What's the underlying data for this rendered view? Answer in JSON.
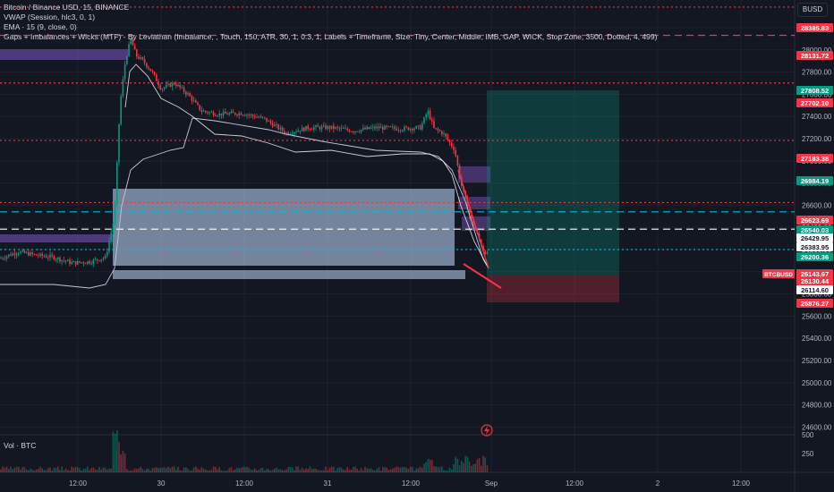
{
  "legend": {
    "symbol_line": "Bitcoin / Binance USD, 15, BINANCE",
    "vwap_line": "VWAP (Session, hlc3, 0, 1)",
    "ema_line": "EMA · 15 (9, close, 0)",
    "gaps_line": "Gaps + Imbalances + Wicks (MTF) - By Leviathan (Imbalance, , Touch, 150, ATR, 30, 1, 0.3, 1, Labels + Timeframe, Size: Tiny, Center, Middle, IMB, GAP, WICK, Stop Zone, 3500, Dotted, 4, 499)"
  },
  "currency_button": "BUSD",
  "volume_label": "Vol · BTC",
  "price_axis_ticks": [
    "28200.00",
    "28000.00",
    "27800.00",
    "27600.00",
    "27400.00",
    "27200.00",
    "27000.00",
    "26800.00",
    "26600.00",
    "26400.00",
    "26200.00",
    "26000.00",
    "25800.00",
    "25600.00",
    "25400.00",
    "25200.00",
    "25000.00",
    "24800.00",
    "24600.00"
  ],
  "volume_axis_ticks": [
    "500",
    "250"
  ],
  "time_axis_ticks": [
    "12:00",
    "30",
    "12:00",
    "31",
    "12:00",
    "Sep",
    "12:00",
    "2",
    "12:00"
  ],
  "price_labels": [
    {
      "text": "28385.83",
      "color": "#f23645"
    },
    {
      "text": "28131.72",
      "color": "#f23645"
    },
    {
      "text": "27808.52",
      "color": "#089981"
    },
    {
      "text": "27702.10",
      "color": "#f23645"
    },
    {
      "text": "27183.38",
      "color": "#f23645"
    },
    {
      "text": "26984.19",
      "color": "#089981"
    },
    {
      "text": "26623.69",
      "color": "#f23645"
    },
    {
      "text": "26540.03",
      "color": "#089981"
    },
    {
      "text": "26429.95",
      "color": "#ffffff"
    },
    {
      "text": "26383.95",
      "color": "#ffffff"
    },
    {
      "text": "26200.36",
      "color": "#089981"
    },
    {
      "text": "26143.67",
      "color": "#f23645"
    },
    {
      "text": "26130.44",
      "color": "#f23645"
    },
    {
      "text": "26114.60",
      "color": "#ffffff"
    },
    {
      "text": "25876.27",
      "color": "#f23645"
    }
  ],
  "symbol_tag": "BTCBUSD",
  "colors": {
    "background": "#131722",
    "grid": "#1e222d",
    "up": "#089981",
    "down": "#f23645",
    "resistance": "#f23645",
    "support": "#089981",
    "midline": "#00bcd4",
    "imbalance_fill": "#b2c8e8",
    "upper_zone": "#7e57c2"
  },
  "icons": {
    "alert": "lightning-bolt-icon"
  }
}
